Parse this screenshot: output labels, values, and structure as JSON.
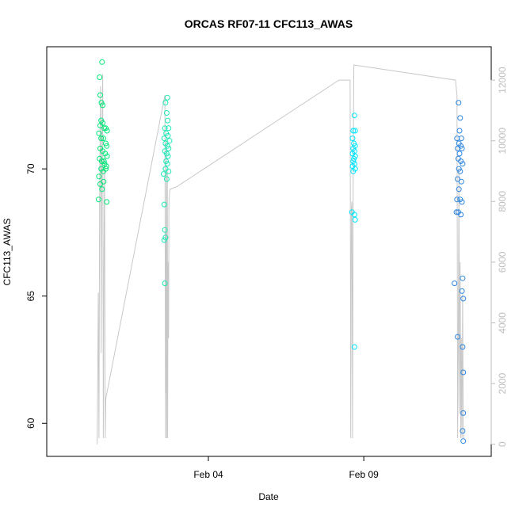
{
  "chart_data": {
    "type": "scatter",
    "title": "ORCAS RF07-11 CFC113_AWAS",
    "xlabel": "Date",
    "ylabel": "CFC113_AWAS",
    "y_ticks": [
      60,
      65,
      70
    ],
    "y_ticks_labels": [
      "60",
      "65",
      "70"
    ],
    "ylim": [
      58.7,
      74.8
    ],
    "x_ticks": [
      4,
      9
    ],
    "x_ticks_labels": [
      "Feb 04",
      "Feb 09"
    ],
    "x_units": "days in February",
    "xlim": [
      -1.2,
      13.1
    ],
    "right_axis": {
      "ticks": [
        0,
        2000,
        4000,
        6000,
        8000,
        10000,
        12000
      ],
      "ticks_labels": [
        "0",
        "2000",
        "4000",
        "6000",
        "8000",
        "10000",
        "12000"
      ],
      "ylim": [
        -400,
        13100
      ],
      "color": "#bdbdbd"
    },
    "series": [
      {
        "color": "#00e676",
        "points": [
          [
            0.58,
            74.2
          ],
          [
            0.5,
            73.6
          ],
          [
            0.52,
            72.9
          ],
          [
            0.56,
            72.6
          ],
          [
            0.6,
            72.5
          ],
          [
            0.55,
            71.9
          ],
          [
            0.52,
            71.7
          ],
          [
            0.6,
            71.8
          ],
          [
            0.65,
            71.6
          ],
          [
            0.7,
            71.6
          ],
          [
            0.74,
            71.5
          ],
          [
            0.48,
            71.4
          ],
          [
            0.55,
            71.2
          ],
          [
            0.62,
            71.2
          ],
          [
            0.7,
            71.0
          ],
          [
            0.73,
            70.9
          ],
          [
            0.52,
            70.8
          ],
          [
            0.6,
            70.7
          ],
          [
            0.68,
            70.6
          ],
          [
            0.74,
            70.5
          ],
          [
            0.5,
            70.4
          ],
          [
            0.57,
            70.3
          ],
          [
            0.66,
            70.2
          ],
          [
            0.72,
            70.1
          ],
          [
            0.55,
            70.0
          ],
          [
            0.62,
            69.9
          ],
          [
            0.7,
            70.0
          ],
          [
            0.48,
            69.7
          ],
          [
            0.63,
            69.5
          ],
          [
            0.52,
            69.4
          ],
          [
            0.58,
            69.2
          ],
          [
            0.47,
            68.8
          ],
          [
            0.73,
            68.7
          ],
          [
            0.64,
            70.3
          ]
        ]
      },
      {
        "color": "#1de9b6",
        "points": [
          [
            2.68,
            72.8
          ],
          [
            2.62,
            72.6
          ],
          [
            2.66,
            72.2
          ],
          [
            2.69,
            71.9
          ],
          [
            2.6,
            71.6
          ],
          [
            2.72,
            71.6
          ],
          [
            2.64,
            71.4
          ],
          [
            2.7,
            71.3
          ],
          [
            2.58,
            71.2
          ],
          [
            2.75,
            71.1
          ],
          [
            2.62,
            71.0
          ],
          [
            2.68,
            70.9
          ],
          [
            2.72,
            70.8
          ],
          [
            2.6,
            70.7
          ],
          [
            2.66,
            70.6
          ],
          [
            2.7,
            70.5
          ],
          [
            2.64,
            70.3
          ],
          [
            2.68,
            70.2
          ],
          [
            2.62,
            70.0
          ],
          [
            2.56,
            69.8
          ],
          [
            2.72,
            69.9
          ],
          [
            2.66,
            69.6
          ],
          [
            2.58,
            68.6
          ],
          [
            2.6,
            67.6
          ],
          [
            2.62,
            67.3
          ],
          [
            2.58,
            67.2
          ],
          [
            2.6,
            65.5
          ]
        ]
      },
      {
        "color": "#00e5ff",
        "points": [
          [
            8.7,
            72.1
          ],
          [
            8.66,
            71.5
          ],
          [
            8.72,
            71.5
          ],
          [
            8.64,
            71.2
          ],
          [
            8.68,
            71.0
          ],
          [
            8.72,
            70.9
          ],
          [
            8.66,
            70.8
          ],
          [
            8.7,
            70.7
          ],
          [
            8.64,
            70.6
          ],
          [
            8.72,
            70.5
          ],
          [
            8.68,
            70.4
          ],
          [
            8.66,
            70.3
          ],
          [
            8.7,
            70.2
          ],
          [
            8.64,
            70.1
          ],
          [
            8.72,
            70.0
          ],
          [
            8.66,
            69.9
          ],
          [
            8.62,
            68.3
          ],
          [
            8.7,
            68.2
          ],
          [
            8.72,
            68.0
          ],
          [
            8.7,
            63.0
          ]
        ]
      },
      {
        "color": "#2e86de",
        "points": [
          [
            12.05,
            72.6
          ],
          [
            12.1,
            72.0
          ],
          [
            12.08,
            71.5
          ],
          [
            12.0,
            71.2
          ],
          [
            12.14,
            71.2
          ],
          [
            12.06,
            71.0
          ],
          [
            12.12,
            70.9
          ],
          [
            12.02,
            70.8
          ],
          [
            12.16,
            70.8
          ],
          [
            12.08,
            70.6
          ],
          [
            12.04,
            70.4
          ],
          [
            12.12,
            70.3
          ],
          [
            12.18,
            70.2
          ],
          [
            12.06,
            70.0
          ],
          [
            12.1,
            69.9
          ],
          [
            12.02,
            69.6
          ],
          [
            12.14,
            69.5
          ],
          [
            12.06,
            69.2
          ],
          [
            12.0,
            68.8
          ],
          [
            12.1,
            68.8
          ],
          [
            12.16,
            68.7
          ],
          [
            11.98,
            68.3
          ],
          [
            12.04,
            68.3
          ],
          [
            12.12,
            68.2
          ],
          [
            11.92,
            65.5
          ],
          [
            12.18,
            65.7
          ],
          [
            12.16,
            65.2
          ],
          [
            12.2,
            64.9
          ],
          [
            12.02,
            63.4
          ],
          [
            12.18,
            63.0
          ],
          [
            12.2,
            62.0
          ],
          [
            12.2,
            60.4
          ],
          [
            12.18,
            59.7
          ],
          [
            12.2,
            59.3
          ]
        ]
      }
    ],
    "altitude_line": {
      "color": "#c8c8c8",
      "points": [
        [
          0.42,
          0
        ],
        [
          0.44,
          2000
        ],
        [
          0.46,
          5000
        ],
        [
          0.48,
          200
        ],
        [
          0.5,
          8000
        ],
        [
          0.53,
          11800
        ],
        [
          0.55,
          3000
        ],
        [
          0.57,
          9000
        ],
        [
          0.6,
          12200
        ],
        [
          0.62,
          200
        ],
        [
          0.64,
          6000
        ],
        [
          0.66,
          9500
        ],
        [
          0.68,
          200
        ],
        [
          0.7,
          1500
        ],
        [
          2.6,
          11500
        ],
        [
          2.62,
          200
        ],
        [
          2.63,
          7000
        ],
        [
          2.64,
          1700
        ],
        [
          2.65,
          10000
        ],
        [
          2.66,
          200
        ],
        [
          2.67,
          4500
        ],
        [
          2.68,
          9000
        ],
        [
          2.69,
          200
        ],
        [
          2.7,
          6000
        ],
        [
          2.72,
          3500
        ],
        [
          2.73,
          8000
        ],
        [
          2.76,
          8400
        ],
        [
          3.0,
          8500
        ],
        [
          8.2,
          12000
        ],
        [
          8.56,
          12000
        ],
        [
          8.58,
          200
        ],
        [
          8.6,
          7800
        ],
        [
          8.62,
          8000
        ],
        [
          8.64,
          200
        ],
        [
          8.66,
          9000
        ],
        [
          8.68,
          12500
        ],
        [
          11.95,
          12000
        ],
        [
          12.0,
          11500
        ],
        [
          12.02,
          200
        ],
        [
          12.04,
          3000
        ],
        [
          12.06,
          9000
        ],
        [
          12.08,
          1000
        ],
        [
          12.1,
          6000
        ],
        [
          12.12,
          200
        ],
        [
          12.14,
          3500
        ],
        [
          12.16,
          200
        ],
        [
          12.18,
          5000
        ],
        [
          12.2,
          400
        ],
        [
          12.22,
          200
        ]
      ],
      "note_segments": [
        [
          [
            0.7,
            1500
          ],
          [
            2.6,
            11500
          ]
        ]
      ]
    }
  }
}
